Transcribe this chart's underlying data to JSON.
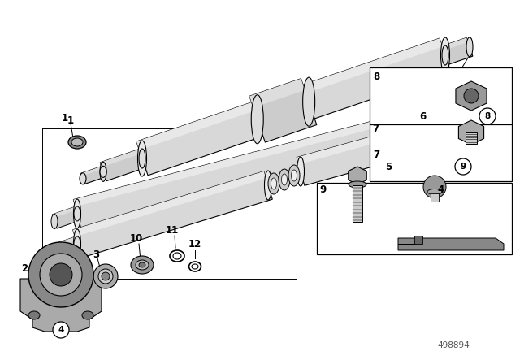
{
  "background_color": "#ffffff",
  "line_color": "#000000",
  "part_number": "498894",
  "shaft_face_color": "#e0e0e0",
  "shaft_side_color": "#c8c8c8",
  "shaft_dark_color": "#aaaaaa",
  "bearing_outer_color": "#888888",
  "bearing_inner_color": "#bbbbbb",
  "component_color": "#999999",
  "right_panel_color": "#b0b0b0"
}
